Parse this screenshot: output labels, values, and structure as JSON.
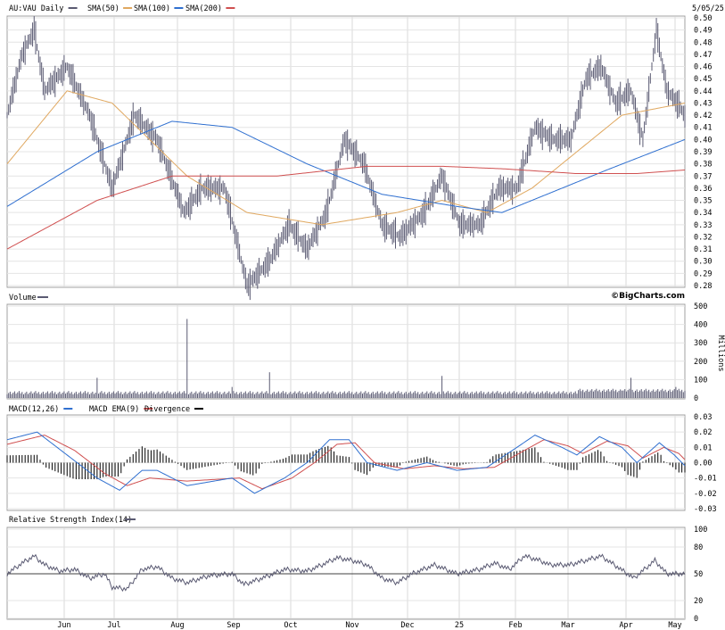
{
  "chart_data": [
    {
      "type": "line",
      "panel": "price",
      "legend": [
        "AU:VAU Daily",
        "SMA(50)",
        "SMA(100)",
        "SMA(200)"
      ],
      "date_label": "5/05/25",
      "brand": "©BigCharts.com",
      "ylim": [
        0.28,
        0.5
      ],
      "y_ticks": [
        "0.50",
        "0.49",
        "0.48",
        "0.47",
        "0.46",
        "0.45",
        "0.44",
        "0.43",
        "0.42",
        "0.41",
        "0.40",
        "0.39",
        "0.38",
        "0.37",
        "0.36",
        "0.35",
        "0.34",
        "0.33",
        "0.32",
        "0.31",
        "0.30",
        "0.29",
        "0.28"
      ],
      "x_ticks": [
        "Jun",
        "Jul",
        "Aug",
        "Sep",
        "Oct",
        "Nov",
        "Dec",
        "25",
        "Feb",
        "Mar",
        "Apr",
        "May"
      ],
      "colors": {
        "price": "#5a5a72",
        "sma50": "#e0a860",
        "sma100": "#3070d0",
        "sma200": "#d05050"
      },
      "series": [
        {
          "name": "AU:VAU Daily",
          "close_anchors": [
            [
              0,
              0.42
            ],
            [
              10,
              0.47
            ],
            [
              18,
              0.49
            ],
            [
              25,
              0.44
            ],
            [
              40,
              0.46
            ],
            [
              55,
              0.42
            ],
            [
              70,
              0.36
            ],
            [
              85,
              0.42
            ],
            [
              100,
              0.4
            ],
            [
              118,
              0.34
            ],
            [
              130,
              0.36
            ],
            [
              145,
              0.36
            ],
            [
              160,
              0.28
            ],
            [
              175,
              0.3
            ],
            [
              188,
              0.33
            ],
            [
              200,
              0.31
            ],
            [
              213,
              0.34
            ],
            [
              225,
              0.4
            ],
            [
              238,
              0.38
            ],
            [
              250,
              0.33
            ],
            [
              262,
              0.32
            ],
            [
              278,
              0.34
            ],
            [
              290,
              0.37
            ],
            [
              302,
              0.33
            ],
            [
              315,
              0.33
            ],
            [
              328,
              0.36
            ],
            [
              340,
              0.36
            ],
            [
              352,
              0.41
            ],
            [
              364,
              0.4
            ],
            [
              376,
              0.4
            ],
            [
              386,
              0.45
            ],
            [
              396,
              0.46
            ],
            [
              406,
              0.43
            ],
            [
              416,
              0.44
            ],
            [
              424,
              0.4
            ],
            [
              433,
              0.49
            ],
            [
              440,
              0.44
            ],
            [
              447,
              0.43
            ],
            [
              452,
              0.42
            ]
          ]
        },
        {
          "name": "SMA(50)",
          "anchors": [
            [
              0,
              0.38
            ],
            [
              40,
              0.44
            ],
            [
              70,
              0.43
            ],
            [
              120,
              0.37
            ],
            [
              160,
              0.34
            ],
            [
              210,
              0.33
            ],
            [
              260,
              0.34
            ],
            [
              290,
              0.35
            ],
            [
              320,
              0.34
            ],
            [
              350,
              0.36
            ],
            [
              380,
              0.39
            ],
            [
              410,
              0.42
            ],
            [
              452,
              0.43
            ]
          ]
        },
        {
          "name": "SMA(100)",
          "anchors": [
            [
              0,
              0.345
            ],
            [
              60,
              0.39
            ],
            [
              110,
              0.415
            ],
            [
              150,
              0.41
            ],
            [
              200,
              0.38
            ],
            [
              250,
              0.355
            ],
            [
              300,
              0.345
            ],
            [
              330,
              0.34
            ],
            [
              360,
              0.355
            ],
            [
              400,
              0.375
            ],
            [
              452,
              0.4
            ]
          ]
        },
        {
          "name": "SMA(200)",
          "anchors": [
            [
              0,
              0.31
            ],
            [
              60,
              0.35
            ],
            [
              110,
              0.37
            ],
            [
              180,
              0.37
            ],
            [
              240,
              0.378
            ],
            [
              290,
              0.378
            ],
            [
              330,
              0.376
            ],
            [
              380,
              0.372
            ],
            [
              420,
              0.372
            ],
            [
              452,
              0.375
            ]
          ]
        }
      ]
    },
    {
      "type": "bar",
      "panel": "volume",
      "title": "Volume",
      "ylabel": "Millions",
      "ylim": [
        0,
        500
      ],
      "y_ticks": [
        "500",
        "400",
        "300",
        "200",
        "100",
        "0"
      ],
      "base": 20,
      "spikes": [
        [
          60,
          110
        ],
        [
          120,
          430
        ],
        [
          150,
          60
        ],
        [
          175,
          140
        ],
        [
          290,
          120
        ],
        [
          410,
          40
        ],
        [
          416,
          110
        ],
        [
          446,
          60
        ]
      ]
    },
    {
      "type": "line",
      "panel": "macd",
      "legend": [
        "MACD(12,26)",
        "MACD EMA(9)",
        "Divergence"
      ],
      "colors": {
        "macd": "#3070d0",
        "ema": "#d05050",
        "div": "#000000"
      },
      "ylim": [
        -0.03,
        0.03
      ],
      "y_ticks": [
        "0.03",
        "0.02",
        "0.01",
        "0.00",
        "-0.01",
        "-0.02",
        "-0.03"
      ],
      "series": [
        {
          "name": "MACD(12,26)",
          "anchors": [
            [
              0,
              0.015
            ],
            [
              20,
              0.02
            ],
            [
              40,
              0.005
            ],
            [
              60,
              -0.01
            ],
            [
              75,
              -0.018
            ],
            [
              90,
              -0.005
            ],
            [
              100,
              -0.005
            ],
            [
              120,
              -0.015
            ],
            [
              150,
              -0.01
            ],
            [
              165,
              -0.02
            ],
            [
              185,
              -0.01
            ],
            [
              200,
              0.0
            ],
            [
              215,
              0.015
            ],
            [
              228,
              0.015
            ],
            [
              240,
              0.0
            ],
            [
              260,
              -0.005
            ],
            [
              280,
              -0.0
            ],
            [
              300,
              -0.005
            ],
            [
              320,
              -0.003
            ],
            [
              340,
              0.01
            ],
            [
              352,
              0.018
            ],
            [
              370,
              0.01
            ],
            [
              380,
              0.005
            ],
            [
              395,
              0.017
            ],
            [
              410,
              0.01
            ],
            [
              420,
              0.0
            ],
            [
              435,
              0.013
            ],
            [
              445,
              0.005
            ],
            [
              452,
              -0.002
            ]
          ]
        },
        {
          "name": "MACD EMA(9)",
          "anchors": [
            [
              0,
              0.012
            ],
            [
              25,
              0.018
            ],
            [
              45,
              0.008
            ],
            [
              65,
              -0.007
            ],
            [
              80,
              -0.015
            ],
            [
              95,
              -0.01
            ],
            [
              120,
              -0.012
            ],
            [
              155,
              -0.01
            ],
            [
              170,
              -0.017
            ],
            [
              190,
              -0.01
            ],
            [
              205,
              0.0
            ],
            [
              220,
              0.012
            ],
            [
              232,
              0.013
            ],
            [
              245,
              0.0
            ],
            [
              265,
              -0.004
            ],
            [
              285,
              -0.002
            ],
            [
              305,
              -0.004
            ],
            [
              325,
              -0.003
            ],
            [
              345,
              0.008
            ],
            [
              358,
              0.015
            ],
            [
              374,
              0.011
            ],
            [
              384,
              0.006
            ],
            [
              400,
              0.014
            ],
            [
              414,
              0.011
            ],
            [
              424,
              0.003
            ],
            [
              438,
              0.01
            ],
            [
              448,
              0.006
            ],
            [
              452,
              0.002
            ]
          ]
        }
      ]
    },
    {
      "type": "line",
      "panel": "rsi",
      "title": "Relative Strength Index(14)",
      "ylim": [
        0,
        100
      ],
      "y_ticks": [
        "100",
        "80",
        "50",
        "20",
        "0"
      ],
      "reference_line": 50,
      "series": [
        {
          "name": "Relative Strength Index(14)",
          "anchors": [
            [
              0,
              50
            ],
            [
              10,
              62
            ],
            [
              18,
              70
            ],
            [
              25,
              60
            ],
            [
              35,
              53
            ],
            [
              45,
              55
            ],
            [
              55,
              45
            ],
            [
              65,
              50
            ],
            [
              70,
              35
            ],
            [
              80,
              33
            ],
            [
              90,
              55
            ],
            [
              100,
              58
            ],
            [
              110,
              45
            ],
            [
              120,
              40
            ],
            [
              135,
              48
            ],
            [
              150,
              50
            ],
            [
              158,
              38
            ],
            [
              170,
              45
            ],
            [
              185,
              55
            ],
            [
              200,
              53
            ],
            [
              210,
              60
            ],
            [
              220,
              68
            ],
            [
              230,
              65
            ],
            [
              240,
              60
            ],
            [
              250,
              45
            ],
            [
              260,
              40
            ],
            [
              270,
              50
            ],
            [
              285,
              60
            ],
            [
              300,
              50
            ],
            [
              315,
              55
            ],
            [
              325,
              62
            ],
            [
              335,
              55
            ],
            [
              345,
              70
            ],
            [
              355,
              65
            ],
            [
              362,
              60
            ],
            [
              375,
              60
            ],
            [
              386,
              65
            ],
            [
              396,
              70
            ],
            [
              405,
              60
            ],
            [
              418,
              45
            ],
            [
              425,
              55
            ],
            [
              432,
              65
            ],
            [
              440,
              50
            ],
            [
              452,
              50
            ]
          ]
        }
      ]
    }
  ]
}
